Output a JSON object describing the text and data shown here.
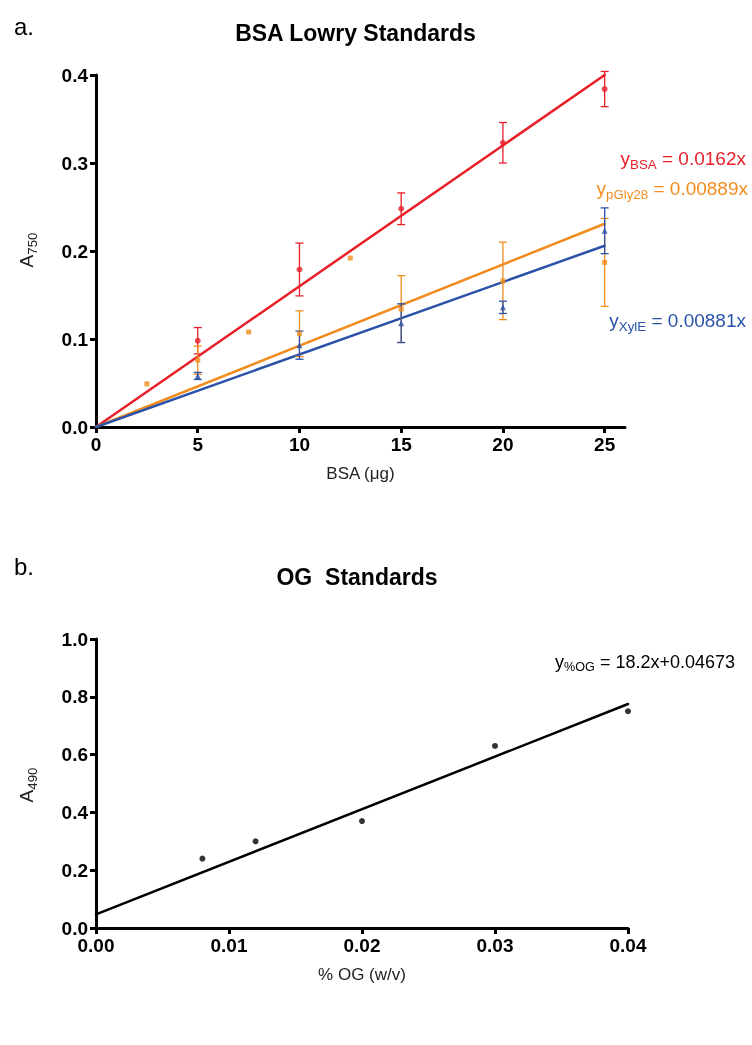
{
  "chart_data": [
    {
      "type": "scatter",
      "title": "BSA Lowry Standards",
      "xlabel": "BSA (μg)",
      "ylabel": "A$_{750}$",
      "annotations": [
        "a."
      ],
      "xlim": [
        0,
        26
      ],
      "xticks": [
        0,
        5,
        10,
        15,
        20,
        25
      ],
      "ylim": [
        0,
        0.4
      ],
      "yticks": [
        {
          "value": 0,
          "label": "0.0"
        },
        {
          "value": 0.1,
          "label": "0.1"
        },
        {
          "value": 0.2,
          "label": "0.2"
        },
        {
          "value": 0.3,
          "label": "0.3"
        },
        {
          "value": 0.4,
          "label": "0.4"
        }
      ],
      "grid": false,
      "series": [
        {
          "type": "scatter",
          "color": "#e8202a",
          "marker": "circle",
          "x": [
            5,
            10,
            15,
            20,
            25
          ],
          "values": [
            0.098,
            0.179,
            0.248,
            0.323,
            0.384
          ],
          "errors": [
            0.015,
            0.03,
            0.018,
            0.023,
            0.02
          ]
        },
        {
          "type": "scatter",
          "color": "#f28c1e",
          "marker": "square",
          "x": [
            2.5,
            5,
            7.5,
            10,
            12.5,
            15,
            20,
            25
          ],
          "values": [
            0.049,
            0.076,
            0.108,
            0.106,
            0.192,
            0.134,
            0.166,
            0.187
          ],
          "errors": [
            null,
            0.016,
            null,
            0.026,
            null,
            0.038,
            0.044,
            0.05
          ]
        },
        {
          "type": "scatter",
          "color": "#2a52a8",
          "marker": "triangle",
          "x": [
            5,
            10,
            15,
            20,
            25
          ],
          "values": [
            0.058,
            0.093,
            0.118,
            0.136,
            0.223
          ],
          "errors": [
            0.004,
            0.016,
            0.022,
            0.007,
            0.026
          ]
        },
        {
          "type": "line",
          "name": "y$_{BSA}$ = 0.0162x",
          "color": "#e8202a",
          "marker": "none",
          "x": [
            0,
            25
          ],
          "values": [
            0,
            0.4
          ]
        },
        {
          "type": "line",
          "name": "y$_{pGly28}$ = 0.00889x",
          "color": "#f28c1e",
          "marker": "none",
          "x": [
            0,
            25
          ],
          "values": [
            0,
            0.231
          ]
        },
        {
          "type": "line",
          "name": "y$_{XylE}$ = 0.00881x",
          "color": "#2a52a8",
          "marker": "none",
          "x": [
            0,
            25
          ],
          "values": [
            0,
            0.206
          ]
        }
      ]
    },
    {
      "type": "scatter",
      "title": "OG  Standards",
      "xlabel": "% OG (w/v)",
      "ylabel": "A$_{490}$",
      "annotations": [
        "b."
      ],
      "xlim": [
        0,
        0.04
      ],
      "xticks": [
        {
          "value": 0,
          "label": "0.00"
        },
        {
          "value": 0.01,
          "label": "0.01"
        },
        {
          "value": 0.02,
          "label": "0.02"
        },
        {
          "value": 0.03,
          "label": "0.03"
        },
        {
          "value": 0.04,
          "label": "0.04"
        }
      ],
      "ylim": [
        0,
        1
      ],
      "yticks": [
        {
          "value": 0,
          "label": "0.0"
        },
        {
          "value": 0.2,
          "label": "0.2"
        },
        {
          "value": 0.4,
          "label": "0.4"
        },
        {
          "value": 0.6,
          "label": "0.6"
        },
        {
          "value": 0.8,
          "label": "0.8"
        },
        {
          "value": 1,
          "label": "1.0"
        }
      ],
      "grid": false,
      "series": [
        {
          "type": "scatter",
          "color": "#000000",
          "marker": "circle",
          "x": [
            0.008,
            0.012,
            0.02,
            0.03,
            0.04
          ],
          "values": [
            0.24,
            0.3,
            0.37,
            0.63,
            0.75
          ]
        },
        {
          "type": "line",
          "name": "y$_{%OG}$ = 18.2x+0.04673",
          "color": "#000000",
          "marker": "none",
          "x": [
            0,
            0.04
          ],
          "values": [
            0.047,
            0.775
          ]
        }
      ]
    }
  ]
}
